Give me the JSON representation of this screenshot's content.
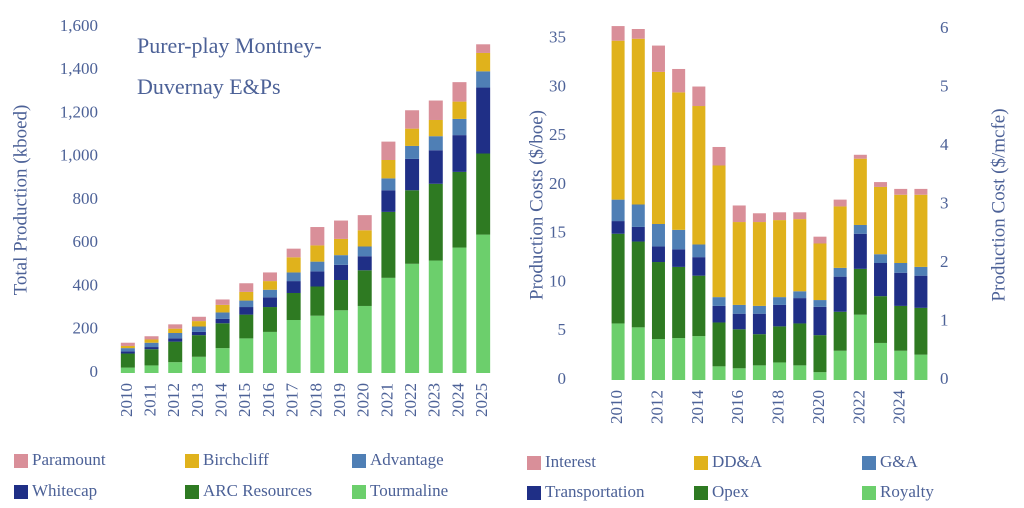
{
  "chart_data": [
    {
      "type": "stacked_bar",
      "title": [
        "Purer-play Montney-",
        "Duvernay E&Ps"
      ],
      "y_label": "Total Production (kboed)",
      "categories": [
        "2010",
        "2011",
        "2012",
        "2013",
        "2014",
        "2015",
        "2016",
        "2017",
        "2018",
        "2019",
        "2020",
        "2021",
        "2022",
        "2023",
        "2024",
        "2025"
      ],
      "series": [
        {
          "name": "Tourmaline",
          "color": "#6ccf6c",
          "values": [
            25,
            35,
            50,
            75,
            115,
            160,
            190,
            245,
            265,
            290,
            310,
            440,
            505,
            520,
            580,
            640
          ]
        },
        {
          "name": "ARC Resources",
          "color": "#2e7a22",
          "values": [
            65,
            75,
            95,
            100,
            115,
            110,
            115,
            125,
            135,
            140,
            165,
            305,
            340,
            355,
            350,
            375
          ]
        },
        {
          "name": "Whitecap",
          "color": "#1f2f86",
          "values": [
            10,
            10,
            15,
            15,
            20,
            35,
            45,
            55,
            70,
            70,
            65,
            100,
            145,
            155,
            170,
            305
          ]
        },
        {
          "name": "Advantage",
          "color": "#4f7fb5",
          "values": [
            15,
            20,
            25,
            25,
            30,
            30,
            35,
            40,
            45,
            45,
            45,
            55,
            60,
            65,
            75,
            75
          ]
        },
        {
          "name": "Birchcliff",
          "color": "#e0b21c",
          "values": [
            10,
            15,
            20,
            25,
            35,
            40,
            40,
            70,
            75,
            75,
            75,
            85,
            80,
            75,
            80,
            85
          ]
        },
        {
          "name": "Paramount",
          "color": "#d98f99",
          "values": [
            15,
            15,
            20,
            20,
            25,
            40,
            40,
            40,
            85,
            85,
            70,
            85,
            85,
            90,
            90,
            40
          ]
        }
      ],
      "ylim": [
        0,
        1600
      ],
      "yticks": [
        0,
        200,
        400,
        600,
        800,
        {
          "value": 1000,
          "label": "1,000"
        },
        {
          "value": 1200,
          "label": "1,200"
        },
        {
          "value": 1400,
          "label": "1,400"
        },
        {
          "value": 1600,
          "label": "1,600"
        }
      ],
      "grid": false
    },
    {
      "type": "stacked_bar",
      "y_label": "Production Costs ($/boe)",
      "y2_label": "Production Cost ($/mcfe)",
      "categories": [
        "2010",
        null,
        "2012",
        null,
        "2014",
        null,
        "2016",
        null,
        "2018",
        null,
        "2020",
        null,
        "2022",
        null,
        "2024",
        null
      ],
      "series": [
        {
          "name": "Royalty",
          "color": "#6ccf6c",
          "values": [
            5.8,
            5.4,
            4.2,
            4.3,
            4.5,
            1.4,
            1.2,
            1.5,
            1.8,
            1.5,
            0.8,
            3.0,
            6.7,
            3.8,
            3.0,
            2.6
          ]
        },
        {
          "name": "Opex",
          "color": "#2e7a22",
          "values": [
            9.2,
            8.8,
            7.9,
            7.3,
            6.2,
            4.5,
            4.0,
            3.2,
            3.7,
            4.3,
            3.8,
            4.0,
            4.7,
            4.8,
            4.6,
            4.8
          ]
        },
        {
          "name": "Transportation",
          "color": "#1f2f86",
          "values": [
            1.3,
            1.5,
            1.6,
            1.8,
            1.9,
            1.7,
            1.6,
            2.1,
            2.2,
            2.6,
            2.9,
            3.6,
            3.6,
            3.4,
            3.4,
            3.3
          ]
        },
        {
          "name": "G&A",
          "color": "#4f7fb5",
          "values": [
            2.2,
            2.3,
            2.3,
            2.0,
            1.3,
            0.9,
            0.9,
            0.8,
            0.8,
            0.7,
            0.7,
            0.9,
            0.9,
            0.9,
            1.0,
            0.9
          ]
        },
        {
          "name": "DD&A",
          "color": "#e0b21c",
          "values": [
            16.3,
            17.0,
            15.6,
            14.1,
            14.2,
            13.5,
            8.5,
            8.6,
            7.9,
            7.4,
            5.8,
            6.3,
            6.8,
            6.9,
            7.0,
            7.4
          ]
        },
        {
          "name": "Interest",
          "color": "#d98f99",
          "values": [
            1.5,
            1.0,
            2.7,
            2.4,
            2.0,
            1.9,
            1.7,
            0.9,
            0.8,
            0.7,
            0.7,
            0.7,
            0.4,
            0.5,
            0.6,
            0.6
          ]
        }
      ],
      "ylim": [
        0,
        36
      ],
      "yticks": [
        0,
        5,
        10,
        15,
        20,
        25,
        30,
        35
      ],
      "y2lim": [
        0,
        6
      ],
      "y2ticks": [
        0,
        1,
        2,
        3,
        4,
        5,
        6
      ],
      "grid": false
    }
  ]
}
